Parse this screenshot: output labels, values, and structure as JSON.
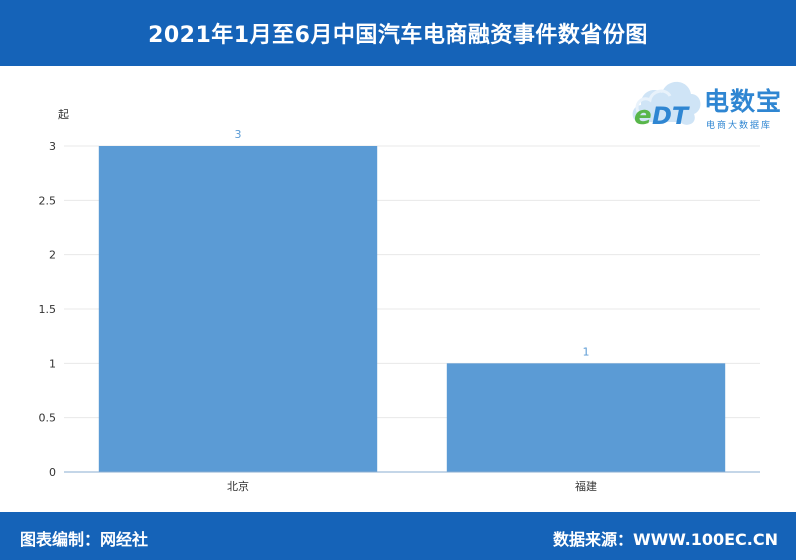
{
  "header": {
    "title": "2021年1月至6月中国汽车电商融资事件数省份图"
  },
  "logo": {
    "brand": "电数宝",
    "subtitle": "电商大数据库",
    "mark": "eDT"
  },
  "footer": {
    "left": "图表编制：网经社",
    "right": "数据来源：WWW.100EC.CN"
  },
  "colors": {
    "header_bg": "#1563b8",
    "bar": "#5b9bd5",
    "label": "#5b9bd5",
    "grid": "#e8e8e8"
  },
  "chart_data": {
    "type": "bar",
    "title": "2021年1月至6月中国汽车电商融资事件数省份图",
    "ylabel": "起",
    "xlabel": "",
    "categories": [
      "北京",
      "福建"
    ],
    "values": [
      3,
      1
    ],
    "data_labels": [
      "3",
      "1"
    ],
    "ylim": [
      0,
      3
    ],
    "yticks": [
      "0",
      "0.5",
      "1",
      "1.5",
      "2",
      "2.5",
      "3"
    ],
    "grid": true,
    "legend": "none"
  }
}
